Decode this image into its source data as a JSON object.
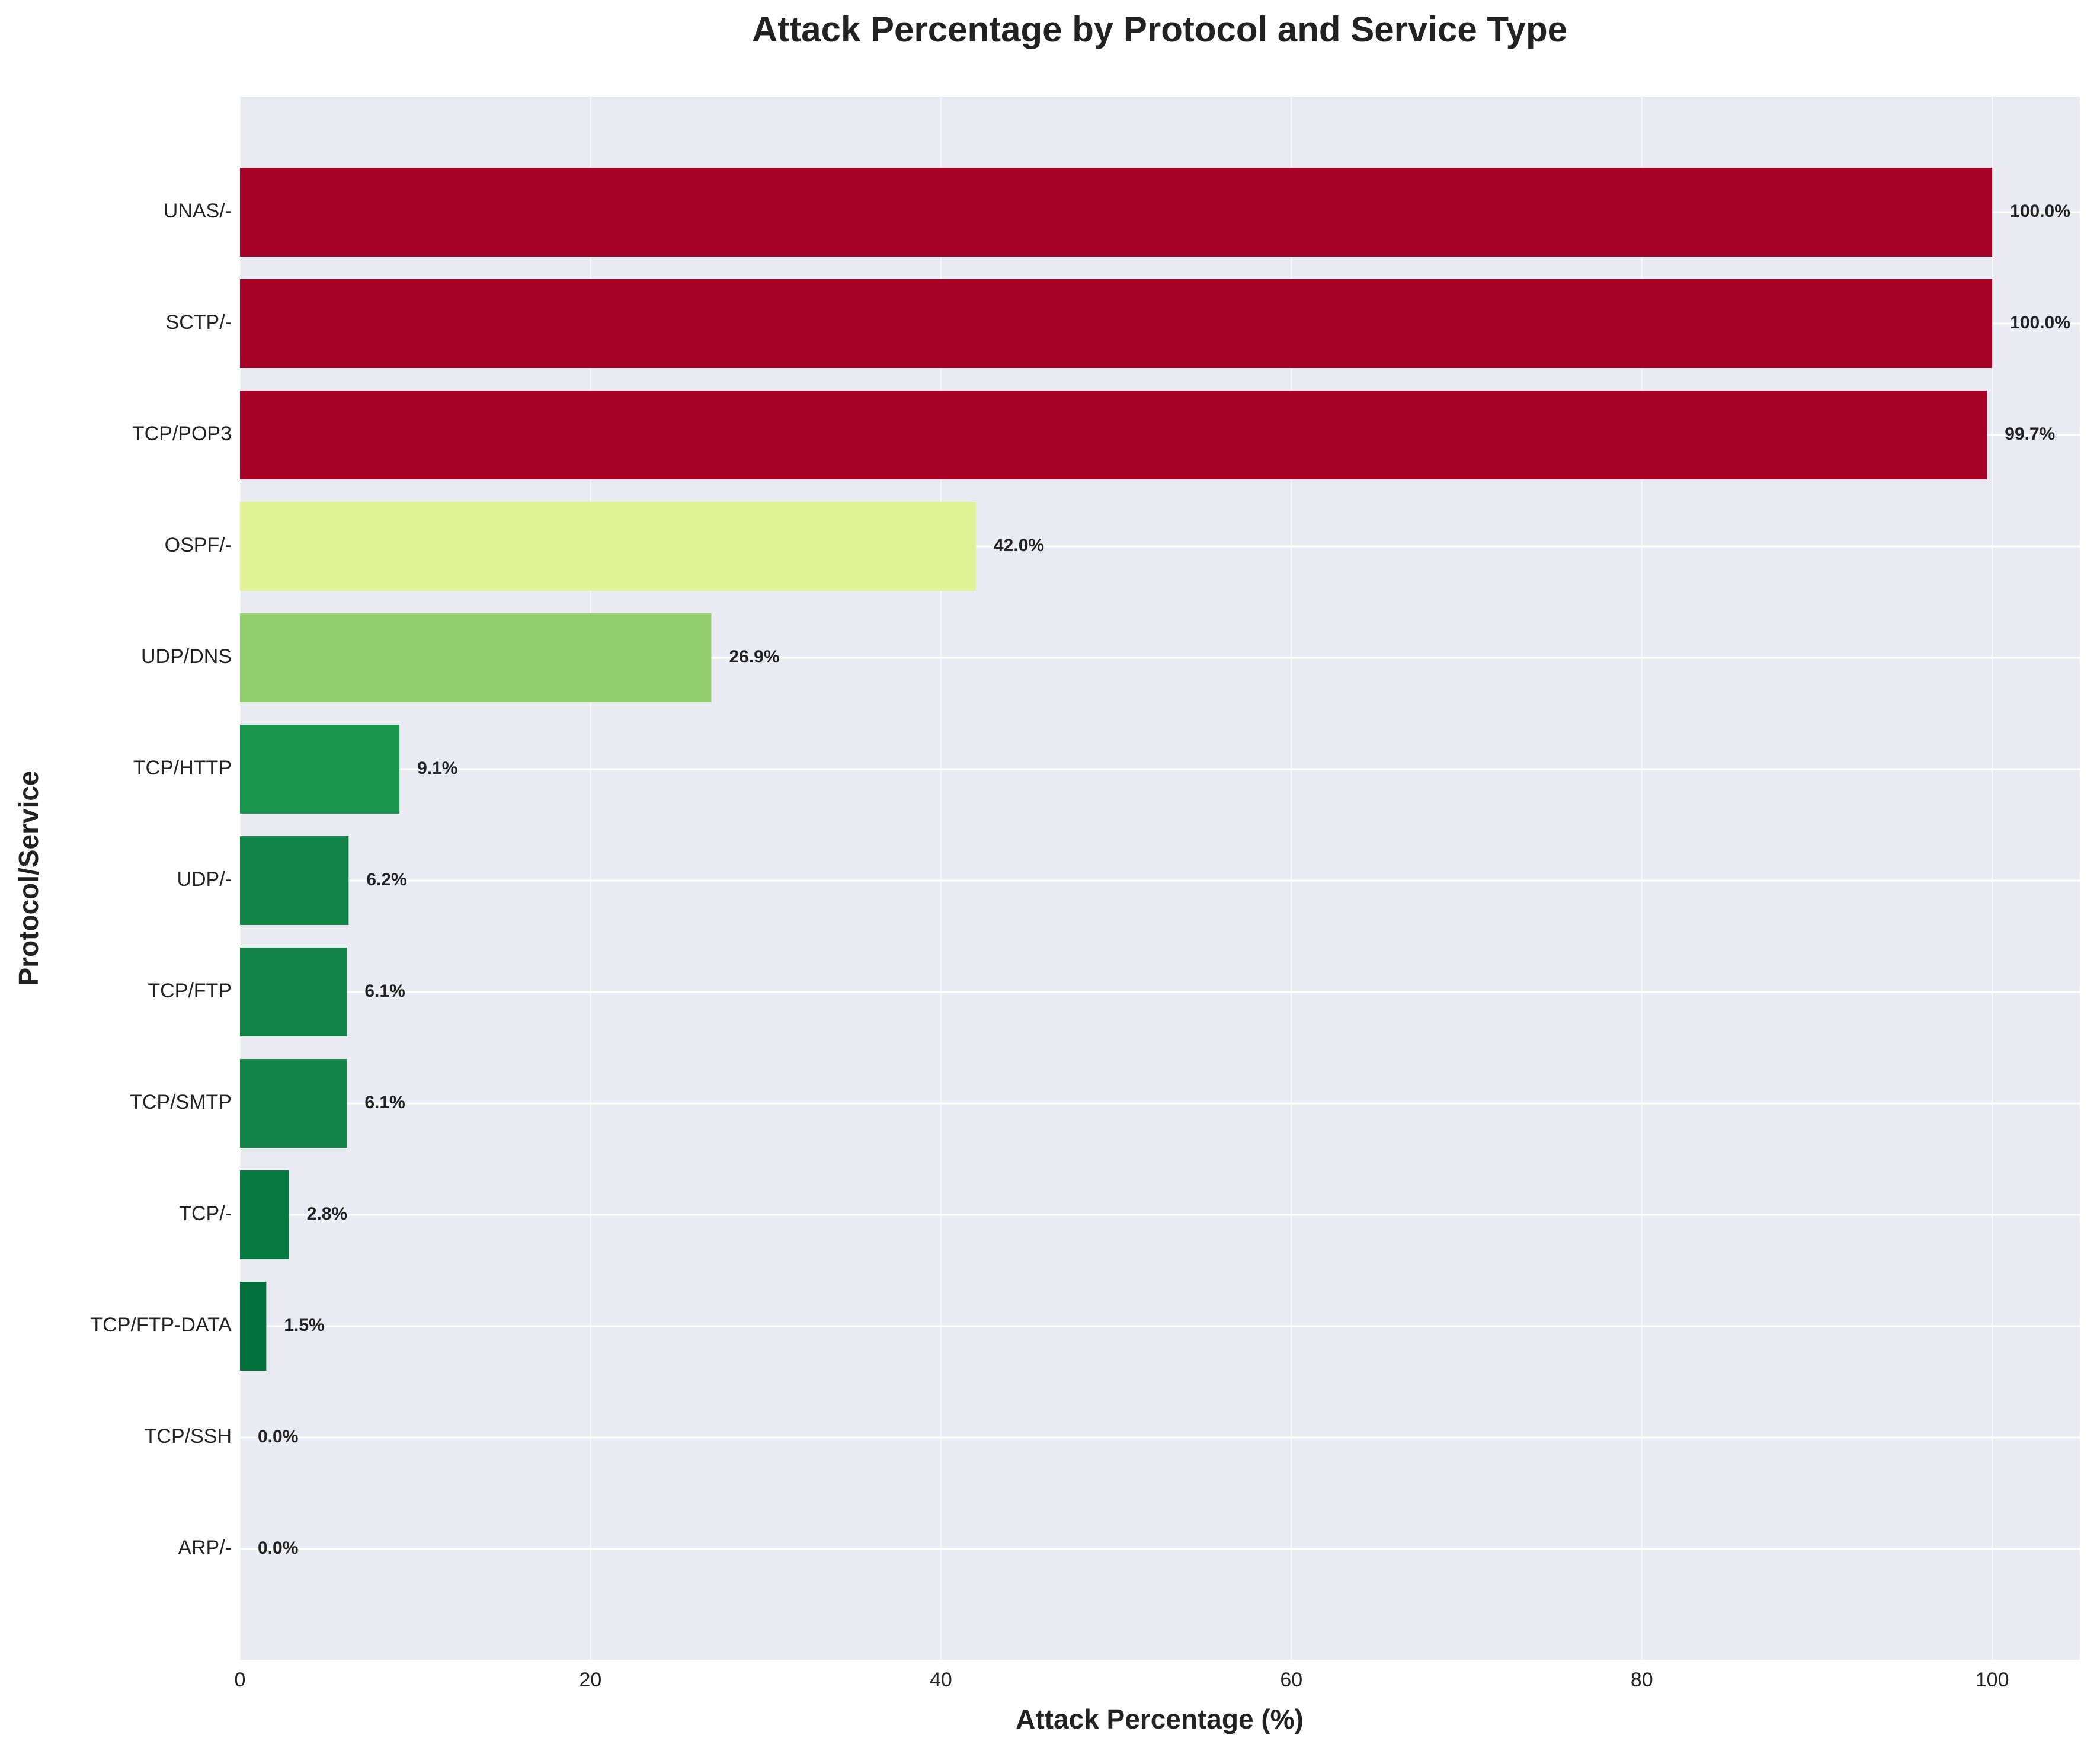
{
  "chart_data": {
    "type": "barh",
    "title": "Attack Percentage by Protocol and Service Type",
    "xlabel": "Attack Percentage (%)",
    "ylabel": "Protocol/Service",
    "categories": [
      "UNAS/-",
      "SCTP/-",
      "TCP/POP3",
      "OSPF/-",
      "UDP/DNS",
      "TCP/HTTP",
      "UDP/-",
      "TCP/FTP",
      "TCP/SMTP",
      "TCP/-",
      "TCP/FTP-DATA",
      "TCP/SSH",
      "ARP/-"
    ],
    "values": [
      100,
      100,
      99.7,
      42.0,
      26.9,
      9.1,
      6.2,
      6.1,
      6.1,
      2.8,
      1.5,
      0.0,
      0.0
    ],
    "value_labels": [
      "100.0%",
      "100.0%",
      "99.7%",
      "42.0%",
      "26.9%",
      "9.1%",
      "6.2%",
      "6.1%",
      "6.1%",
      "2.8%",
      "1.5%",
      "0.0%",
      "0.0%"
    ],
    "colors": [
      "#a50026",
      "#a50026",
      "#a50026",
      "#e0f295",
      "#91cf6a",
      "#1a9850",
      "#138548",
      "#138548",
      "#138548",
      "#077a3f",
      "#04703b",
      "#006837",
      "#006837"
    ],
    "xlim": [
      0,
      105
    ],
    "xticks": [
      0,
      20,
      40,
      60,
      80,
      100
    ],
    "grid": true
  }
}
